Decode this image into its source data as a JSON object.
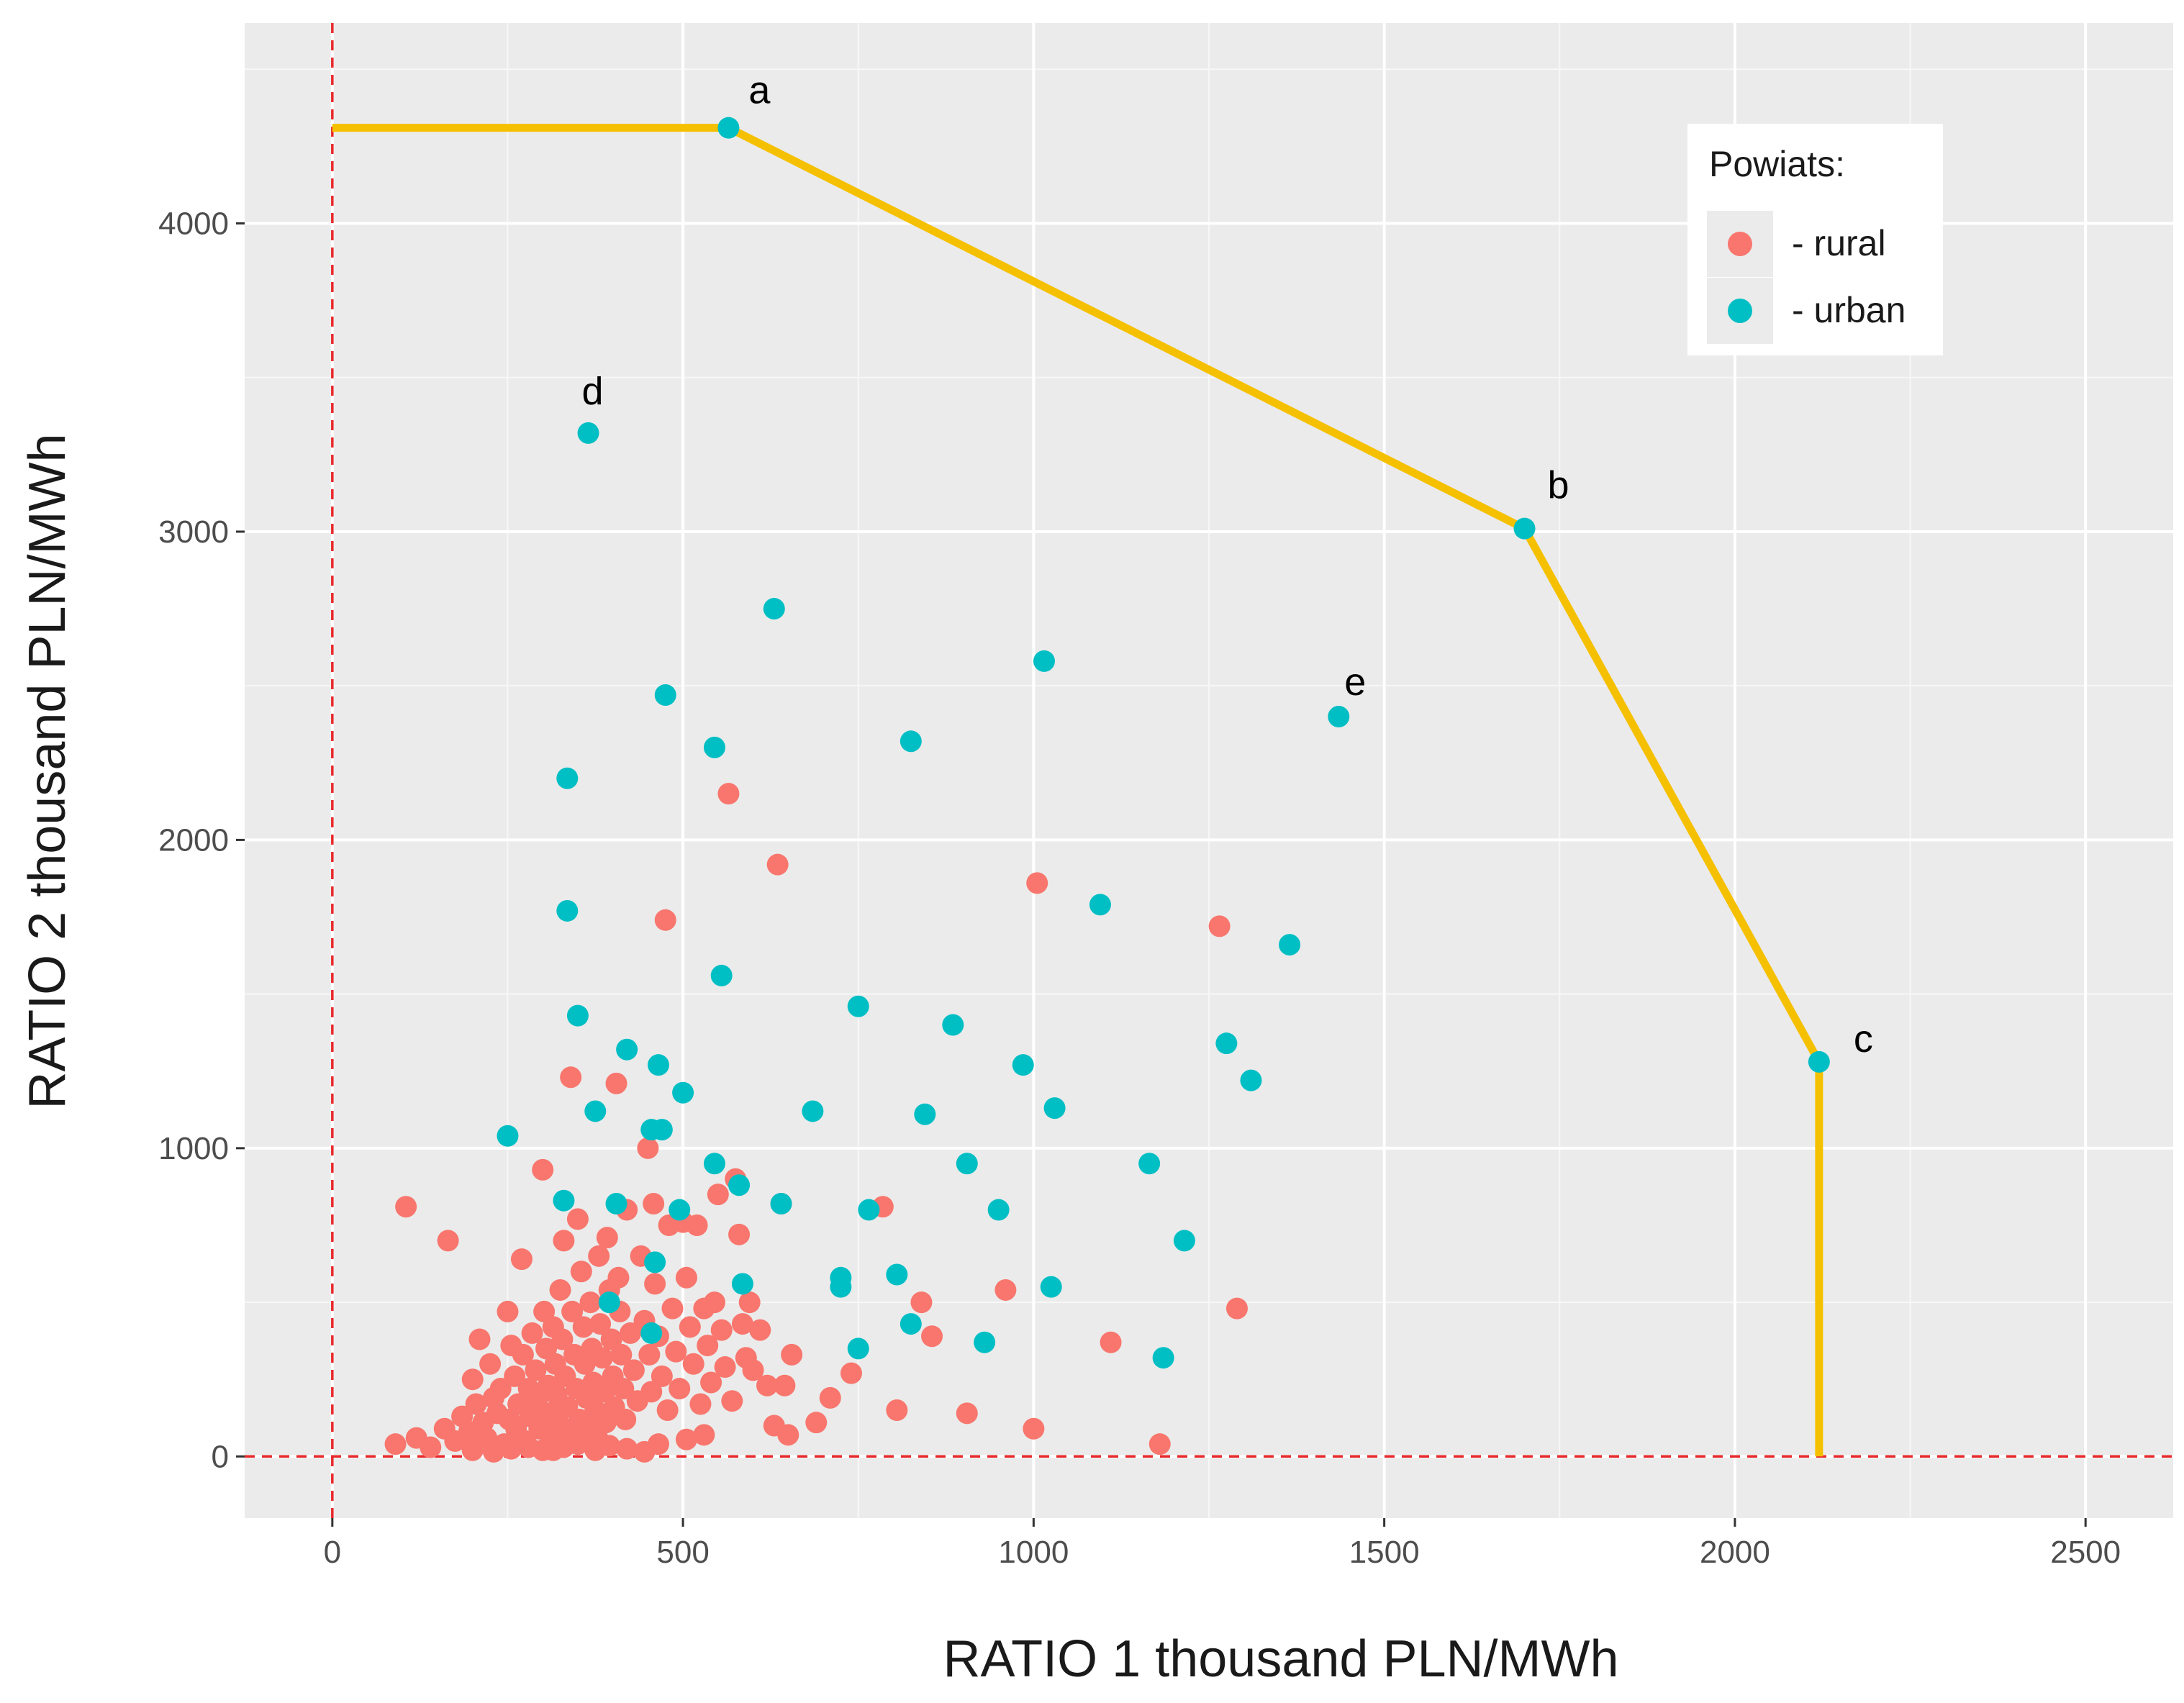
{
  "chart_data": {
    "type": "scatter",
    "xlabel": "RATIO 1  thousand PLN/MWh",
    "ylabel": "RATIO 2  thousand PLN/MWh",
    "xlim": [
      -125,
      2625
    ],
    "ylim": [
      -200,
      4650
    ],
    "x_ticks": [
      0,
      500,
      1000,
      1500,
      2000,
      2500
    ],
    "y_ticks": [
      0,
      1000,
      2000,
      3000,
      4000
    ],
    "grid": true,
    "legend": {
      "title": "Powiats:",
      "position": "top-right",
      "entries": [
        {
          "label": "- rural",
          "color": "#F8766D"
        },
        {
          "label": "- urban",
          "color": "#00BFC4"
        }
      ]
    },
    "reference_lines": [
      {
        "orientation": "vertical",
        "value": 0,
        "color": "#e8292b",
        "style": "dashed"
      },
      {
        "orientation": "horizontal",
        "value": 0,
        "color": "#e8292b",
        "style": "dashed"
      }
    ],
    "frontier": {
      "color": "#F5C000",
      "points": [
        [
          0,
          4310
        ],
        [
          565,
          4310
        ],
        [
          1700,
          3010
        ],
        [
          2120,
          1280
        ],
        [
          2120,
          0
        ]
      ]
    },
    "annotations": [
      {
        "label": "a",
        "x": 565,
        "y": 4310
      },
      {
        "label": "b",
        "x": 1700,
        "y": 3010
      },
      {
        "label": "c",
        "x": 2120,
        "y": 1280
      },
      {
        "label": "d",
        "x": 365,
        "y": 3320
      },
      {
        "label": "e",
        "x": 1435,
        "y": 2400
      }
    ],
    "series": [
      {
        "name": "- rural",
        "color": "#F8766D",
        "points": [
          [
            105,
            810
          ],
          [
            165,
            700
          ],
          [
            90,
            40
          ],
          [
            120,
            60
          ],
          [
            140,
            30
          ],
          [
            160,
            90
          ],
          [
            175,
            50
          ],
          [
            185,
            130
          ],
          [
            195,
            80
          ],
          [
            200,
            250
          ],
          [
            205,
            170
          ],
          [
            210,
            380
          ],
          [
            215,
            110
          ],
          [
            220,
            60
          ],
          [
            225,
            300
          ],
          [
            230,
            190
          ],
          [
            235,
            140
          ],
          [
            240,
            220
          ],
          [
            245,
            40
          ],
          [
            250,
            470
          ],
          [
            252,
            120
          ],
          [
            255,
            360
          ],
          [
            260,
            260
          ],
          [
            262,
            90
          ],
          [
            265,
            170
          ],
          [
            270,
            640
          ],
          [
            272,
            330
          ],
          [
            275,
            50
          ],
          [
            280,
            220
          ],
          [
            282,
            130
          ],
          [
            285,
            400
          ],
          [
            290,
            280
          ],
          [
            292,
            180
          ],
          [
            295,
            90
          ],
          [
            300,
            930
          ],
          [
            302,
            470
          ],
          [
            305,
            350
          ],
          [
            308,
            230
          ],
          [
            310,
            140
          ],
          [
            312,
            60
          ],
          [
            315,
            420
          ],
          [
            318,
            300
          ],
          [
            320,
            200
          ],
          [
            322,
            110
          ],
          [
            325,
            540
          ],
          [
            328,
            380
          ],
          [
            330,
            700
          ],
          [
            332,
            260
          ],
          [
            335,
            160
          ],
          [
            338,
            80
          ],
          [
            340,
            1230
          ],
          [
            342,
            470
          ],
          [
            345,
            330
          ],
          [
            348,
            220
          ],
          [
            350,
            770
          ],
          [
            352,
            120
          ],
          [
            355,
            600
          ],
          [
            358,
            420
          ],
          [
            360,
            300
          ],
          [
            362,
            190
          ],
          [
            365,
            90
          ],
          [
            368,
            500
          ],
          [
            370,
            350
          ],
          [
            372,
            240
          ],
          [
            375,
            150
          ],
          [
            378,
            60
          ],
          [
            380,
            650
          ],
          [
            382,
            430
          ],
          [
            385,
            320
          ],
          [
            388,
            210
          ],
          [
            390,
            110
          ],
          [
            392,
            710
          ],
          [
            395,
            540
          ],
          [
            398,
            380
          ],
          [
            400,
            260
          ],
          [
            402,
            160
          ],
          [
            405,
            1210
          ],
          [
            408,
            580
          ],
          [
            410,
            470
          ],
          [
            412,
            330
          ],
          [
            415,
            220
          ],
          [
            418,
            120
          ],
          [
            420,
            800
          ],
          [
            425,
            400
          ],
          [
            430,
            280
          ],
          [
            435,
            180
          ],
          [
            440,
            650
          ],
          [
            445,
            440
          ],
          [
            450,
            1000
          ],
          [
            452,
            330
          ],
          [
            455,
            210
          ],
          [
            458,
            820
          ],
          [
            460,
            560
          ],
          [
            465,
            390
          ],
          [
            470,
            260
          ],
          [
            475,
            1740
          ],
          [
            478,
            150
          ],
          [
            480,
            750
          ],
          [
            485,
            480
          ],
          [
            490,
            340
          ],
          [
            495,
            220
          ],
          [
            500,
            760
          ],
          [
            505,
            580
          ],
          [
            510,
            420
          ],
          [
            515,
            300
          ],
          [
            520,
            750
          ],
          [
            525,
            170
          ],
          [
            530,
            480
          ],
          [
            535,
            360
          ],
          [
            540,
            240
          ],
          [
            545,
            500
          ],
          [
            550,
            850
          ],
          [
            555,
            410
          ],
          [
            560,
            290
          ],
          [
            565,
            2150
          ],
          [
            570,
            180
          ],
          [
            575,
            900
          ],
          [
            580,
            720
          ],
          [
            585,
            430
          ],
          [
            590,
            320
          ],
          [
            595,
            500
          ],
          [
            600,
            280
          ],
          [
            610,
            410
          ],
          [
            620,
            230
          ],
          [
            630,
            100
          ],
          [
            635,
            1920
          ],
          [
            640,
            820
          ],
          [
            645,
            230
          ],
          [
            650,
            70
          ],
          [
            655,
            330
          ],
          [
            690,
            110
          ],
          [
            710,
            190
          ],
          [
            740,
            270
          ],
          [
            785,
            810
          ],
          [
            805,
            150
          ],
          [
            840,
            500
          ],
          [
            855,
            390
          ],
          [
            905,
            140
          ],
          [
            960,
            540
          ],
          [
            1000,
            90
          ],
          [
            1005,
            1860
          ],
          [
            1110,
            370
          ],
          [
            1180,
            40
          ],
          [
            1265,
            1720
          ],
          [
            1290,
            480
          ],
          [
            315,
            20
          ],
          [
            330,
            30
          ],
          [
            350,
            40
          ],
          [
            375,
            20
          ],
          [
            395,
            35
          ],
          [
            420,
            25
          ],
          [
            445,
            15
          ],
          [
            465,
            40
          ],
          [
            505,
            55
          ],
          [
            530,
            70
          ],
          [
            200,
            20
          ],
          [
            230,
            15
          ],
          [
            255,
            25
          ],
          [
            280,
            30
          ],
          [
            300,
            20
          ]
        ]
      },
      {
        "name": "- urban",
        "color": "#00BFC4",
        "points": [
          [
            565,
            4310
          ],
          [
            1700,
            3010
          ],
          [
            2120,
            1280
          ],
          [
            365,
            3320
          ],
          [
            1435,
            2400
          ],
          [
            630,
            2750
          ],
          [
            1015,
            2580
          ],
          [
            475,
            2470
          ],
          [
            545,
            2300
          ],
          [
            825,
            2320
          ],
          [
            335,
            2200
          ],
          [
            335,
            1770
          ],
          [
            1095,
            1790
          ],
          [
            1365,
            1660
          ],
          [
            555,
            1560
          ],
          [
            750,
            1460
          ],
          [
            350,
            1430
          ],
          [
            885,
            1400
          ],
          [
            1275,
            1340
          ],
          [
            420,
            1320
          ],
          [
            465,
            1270
          ],
          [
            985,
            1270
          ],
          [
            1310,
            1220
          ],
          [
            500,
            1180
          ],
          [
            375,
            1120
          ],
          [
            685,
            1120
          ],
          [
            1030,
            1130
          ],
          [
            845,
            1110
          ],
          [
            455,
            1060
          ],
          [
            470,
            1060
          ],
          [
            250,
            1040
          ],
          [
            545,
            950
          ],
          [
            905,
            950
          ],
          [
            1165,
            950
          ],
          [
            580,
            880
          ],
          [
            330,
            830
          ],
          [
            405,
            820
          ],
          [
            495,
            800
          ],
          [
            765,
            800
          ],
          [
            950,
            800
          ],
          [
            640,
            820
          ],
          [
            1215,
            700
          ],
          [
            460,
            630
          ],
          [
            725,
            580
          ],
          [
            805,
            590
          ],
          [
            585,
            560
          ],
          [
            725,
            550
          ],
          [
            1025,
            550
          ],
          [
            395,
            500
          ],
          [
            825,
            430
          ],
          [
            455,
            400
          ],
          [
            930,
            370
          ],
          [
            750,
            350
          ],
          [
            1185,
            320
          ]
        ]
      }
    ]
  }
}
